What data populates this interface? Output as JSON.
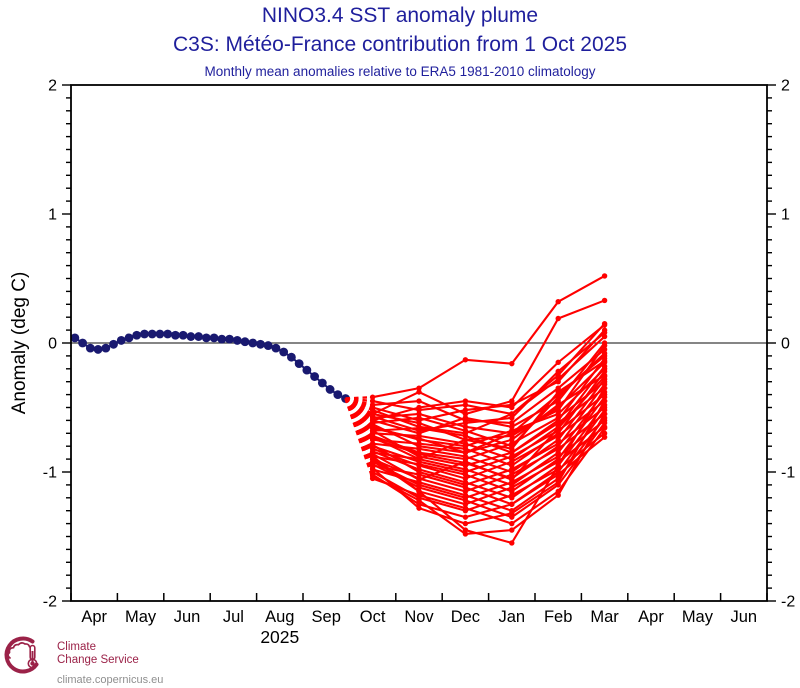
{
  "header": {
    "title": "NINO3.4 SST anomaly plume",
    "subtitle": "C3S: Météo-France contribution from 1 Oct 2025",
    "note": "Monthly mean anomalies relative to ERA5 1981-2010 climatology"
  },
  "footer": {
    "logo_line1": "Climate",
    "logo_line2": "Change Service",
    "logo_url": "climate.copernicus.eu"
  },
  "colors": {
    "title_navy": "#1f1f9c",
    "obs_navy": "#191970",
    "forecast_red": "#ff0000",
    "axis_black": "#000000",
    "zero_gray": "#3c3c3c",
    "logo_maroon": "#9b2248",
    "url_gray": "#8f8f8f"
  },
  "chart_data": {
    "type": "line",
    "title": "NINO3.4 SST anomaly plume",
    "ylabel": "Anomaly (deg C)",
    "ylim": [
      -2,
      2
    ],
    "y_major_ticks": [
      -2,
      -1,
      0,
      1,
      2
    ],
    "y_minor_step": 0.1,
    "grid": false,
    "zero_line": true,
    "x_months": [
      "Apr",
      "May",
      "Jun",
      "Jul",
      "Aug",
      "Sep",
      "Oct",
      "Nov",
      "Dec",
      "Jan",
      "Feb",
      "Mar",
      "Apr",
      "May",
      "Jun"
    ],
    "year_label": "2025",
    "year_label_under_month_index": 4,
    "observations": {
      "start_month_index": 0,
      "end_month_index": 5,
      "values": [
        0.04,
        0.0,
        -0.04,
        -0.05,
        -0.04,
        -0.01,
        0.02,
        0.04,
        0.06,
        0.07,
        0.07,
        0.07,
        0.07,
        0.06,
        0.06,
        0.05,
        0.05,
        0.04,
        0.04,
        0.03,
        0.03,
        0.02,
        0.01,
        0.0,
        -0.01,
        -0.02,
        -0.04,
        -0.07,
        -0.11,
        -0.16,
        -0.21,
        -0.26,
        -0.31,
        -0.36,
        -0.4,
        -0.43
      ]
    },
    "forecast": {
      "start_month_index": 6,
      "months": [
        "Oct",
        "Nov",
        "Dec",
        "Jan",
        "Feb",
        "Mar"
      ],
      "members": [
        [
          -0.42,
          -0.35,
          -0.13,
          -0.16,
          0.32,
          0.52
        ],
        [
          -0.55,
          -0.38,
          -0.55,
          -0.45,
          0.19,
          0.33
        ],
        [
          -0.45,
          -0.52,
          -0.48,
          -0.55,
          -0.25,
          0.15
        ],
        [
          -0.5,
          -0.6,
          -0.52,
          -0.48,
          -0.3,
          0.1
        ],
        [
          -0.48,
          -0.45,
          -0.6,
          -0.62,
          -0.35,
          -0.05
        ],
        [
          -0.52,
          -0.65,
          -0.7,
          -0.55,
          -0.28,
          0.05
        ],
        [
          -0.58,
          -0.55,
          -0.65,
          -0.7,
          -0.4,
          -0.1
        ],
        [
          -0.6,
          -0.7,
          -0.58,
          -0.65,
          -0.45,
          0.0
        ],
        [
          -0.55,
          -0.62,
          -0.75,
          -0.72,
          -0.5,
          -0.15
        ],
        [
          -0.62,
          -0.58,
          -0.68,
          -0.8,
          -0.42,
          -0.08
        ],
        [
          -0.65,
          -0.75,
          -0.8,
          -0.68,
          -0.55,
          -0.2
        ],
        [
          -0.68,
          -0.66,
          -0.72,
          -0.85,
          -0.6,
          -0.12
        ],
        [
          -0.63,
          -0.8,
          -0.85,
          -0.75,
          -0.48,
          -0.25
        ],
        [
          -0.7,
          -0.72,
          -0.78,
          -0.9,
          -0.65,
          -0.18
        ],
        [
          -0.72,
          -0.85,
          -0.9,
          -0.78,
          -0.58,
          -0.3
        ],
        [
          -0.75,
          -0.78,
          -0.82,
          -0.95,
          -0.7,
          -0.22
        ],
        [
          -0.68,
          -0.88,
          -0.95,
          -0.85,
          -0.62,
          -0.35
        ],
        [
          -0.78,
          -0.82,
          -0.88,
          -1.0,
          -0.75,
          -0.28
        ],
        [
          -0.8,
          -0.92,
          -1.0,
          -0.88,
          -0.68,
          -0.4
        ],
        [
          -0.74,
          -0.86,
          -0.93,
          -1.05,
          -0.8,
          -0.32
        ],
        [
          -0.82,
          -0.95,
          -1.05,
          -0.92,
          -0.72,
          -0.45
        ],
        [
          -0.85,
          -0.9,
          -0.98,
          -1.1,
          -0.85,
          -0.38
        ],
        [
          -0.79,
          -1.0,
          -1.1,
          -0.98,
          -0.78,
          -0.5
        ],
        [
          -0.88,
          -0.94,
          -1.02,
          -1.15,
          -0.9,
          -0.42
        ],
        [
          -0.9,
          -1.05,
          -1.15,
          -1.02,
          -0.82,
          -0.55
        ],
        [
          -0.84,
          -0.98,
          -1.08,
          -1.2,
          -0.95,
          -0.48
        ],
        [
          -0.92,
          -1.1,
          -1.2,
          -1.08,
          -0.88,
          -0.6
        ],
        [
          -0.95,
          -1.02,
          -1.12,
          -1.25,
          -1.0,
          -0.52
        ],
        [
          -0.88,
          -1.15,
          -1.25,
          -1.12,
          -0.92,
          -0.65
        ],
        [
          -0.98,
          -1.08,
          -1.18,
          -1.3,
          -1.05,
          -0.58
        ],
        [
          -1.0,
          -1.2,
          -1.3,
          -1.18,
          -0.98,
          -0.7
        ],
        [
          -0.94,
          -1.12,
          -1.22,
          -1.35,
          -1.1,
          -0.62
        ],
        [
          -1.02,
          -1.25,
          -1.35,
          -1.25,
          -1.02,
          -0.73
        ],
        [
          -1.05,
          -1.18,
          -1.28,
          -1.4,
          -1.15,
          -0.66
        ],
        [
          -0.97,
          -1.28,
          -1.4,
          -1.32,
          -1.08,
          -0.45
        ],
        [
          -1.03,
          -1.22,
          -1.48,
          -1.45,
          -1.18,
          -0.55
        ],
        [
          -0.9,
          -1.15,
          -1.45,
          -1.55,
          -0.95,
          -0.35
        ],
        [
          -0.6,
          -0.5,
          -0.45,
          -0.5,
          -0.15,
          0.14
        ],
        [
          -0.57,
          -0.68,
          -0.62,
          -0.58,
          -0.22,
          0.08
        ],
        [
          -0.66,
          -0.74,
          -0.85,
          -0.7,
          -0.52,
          -0.02
        ],
        [
          -0.73,
          -0.9,
          -0.75,
          -0.82,
          -0.38,
          -0.14
        ],
        [
          -0.86,
          -1.06,
          -0.92,
          -1.06,
          -0.66,
          -0.26
        ]
      ]
    }
  }
}
